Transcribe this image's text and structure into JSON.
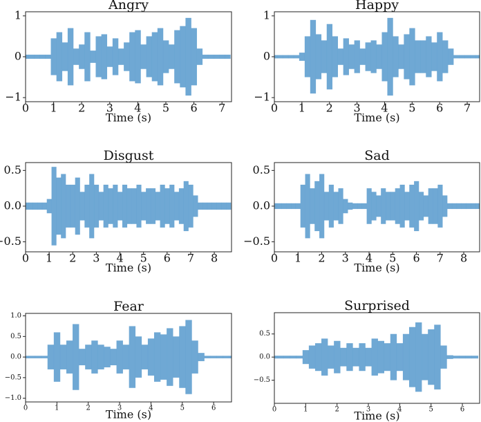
{
  "chart_data": [
    {
      "type": "waveform",
      "title": "Angry",
      "xlabel": "Time (s)",
      "color": "#5f9fcf",
      "x": [
        0,
        0.2,
        0.4,
        0.6,
        0.8,
        1.0,
        1.2,
        1.4,
        1.6,
        1.8,
        2.0,
        2.2,
        2.4,
        2.6,
        2.8,
        3.0,
        3.2,
        3.4,
        3.6,
        3.8,
        4.0,
        4.2,
        4.4,
        4.6,
        4.8,
        5.0,
        5.2,
        5.4,
        5.6,
        5.8,
        6.0,
        6.2,
        6.4,
        6.6,
        6.8,
        7.0,
        7.2
      ],
      "values": [
        0.05,
        0.05,
        0.05,
        0.05,
        0.05,
        0.45,
        0.6,
        0.35,
        0.7,
        0.2,
        0.3,
        0.6,
        0.15,
        0.5,
        0.55,
        0.25,
        0.45,
        0.2,
        0.35,
        0.6,
        0.65,
        0.3,
        0.5,
        0.6,
        0.7,
        0.4,
        0.3,
        0.65,
        0.75,
        0.95,
        0.7,
        0.2,
        0.05,
        0.05,
        0.05,
        0.05,
        0.05
      ],
      "xlim": [
        0,
        7.34
      ],
      "ylim": [
        -1.1,
        1.1
      ],
      "xticks": [
        0,
        1,
        2,
        3,
        4,
        5,
        6,
        7
      ],
      "yticks": [
        {
          "value": -1,
          "label": "−1"
        },
        0,
        1
      ]
    },
    {
      "type": "waveform",
      "title": "Happy",
      "xlabel": "Time (s)",
      "color": "#5f9fcf",
      "x": [
        0,
        0.2,
        0.4,
        0.6,
        0.8,
        1.0,
        1.2,
        1.4,
        1.6,
        1.8,
        2.0,
        2.2,
        2.4,
        2.6,
        2.8,
        3.0,
        3.2,
        3.4,
        3.6,
        3.8,
        4.0,
        4.2,
        4.4,
        4.6,
        4.8,
        5.0,
        5.2,
        5.4,
        5.6,
        5.8,
        6.0,
        6.2,
        6.4,
        6.6,
        6.8,
        7.0,
        7.2,
        7.4
      ],
      "values": [
        0.04,
        0.04,
        0.04,
        0.04,
        0.04,
        0.1,
        0.5,
        0.9,
        0.55,
        0.4,
        0.8,
        0.5,
        0.2,
        0.45,
        0.3,
        0.4,
        0.2,
        0.35,
        0.4,
        0.3,
        0.6,
        0.95,
        0.5,
        0.3,
        0.55,
        0.7,
        0.4,
        0.4,
        0.5,
        0.35,
        0.6,
        0.4,
        0.2,
        0.04,
        0.04,
        0.04,
        0.04,
        0.04
      ],
      "xlim": [
        0,
        7.45
      ],
      "ylim": [
        -1.1,
        1.1
      ],
      "xticks": [
        0,
        1,
        2,
        3,
        4,
        5,
        6,
        7
      ],
      "yticks": [
        {
          "value": -1,
          "label": "−1"
        },
        0,
        1
      ]
    },
    {
      "type": "waveform",
      "title": "Disgust",
      "xlabel": "Time (s)",
      "color": "#5f9fcf",
      "x": [
        0,
        0.2,
        0.4,
        0.6,
        0.8,
        1.0,
        1.2,
        1.4,
        1.6,
        1.8,
        2.0,
        2.2,
        2.4,
        2.6,
        2.8,
        3.0,
        3.2,
        3.4,
        3.6,
        3.8,
        4.0,
        4.2,
        4.4,
        4.6,
        4.8,
        5.0,
        5.2,
        5.4,
        5.6,
        5.8,
        6.0,
        6.2,
        6.4,
        6.6,
        6.8,
        7.0,
        7.2,
        7.4,
        7.6,
        7.8,
        8.0,
        8.2,
        8.4,
        8.6
      ],
      "values": [
        0.05,
        0.05,
        0.05,
        0.05,
        0.05,
        0.1,
        0.55,
        0.4,
        0.45,
        0.3,
        0.3,
        0.4,
        0.2,
        0.3,
        0.45,
        0.3,
        0.2,
        0.3,
        0.25,
        0.3,
        0.2,
        0.3,
        0.25,
        0.25,
        0.3,
        0.2,
        0.25,
        0.25,
        0.2,
        0.3,
        0.25,
        0.3,
        0.2,
        0.25,
        0.35,
        0.3,
        0.15,
        0.05,
        0.05,
        0.05,
        0.05,
        0.05,
        0.05,
        0.05
      ],
      "xlim": [
        0,
        8.73
      ],
      "ylim": [
        -0.64,
        0.61
      ],
      "xticks": [
        0,
        1,
        2,
        3,
        4,
        5,
        6,
        7,
        8
      ],
      "yticks": [
        {
          "value": -0.5,
          "label": "−0.5"
        },
        {
          "value": 0,
          "label": "0.0"
        },
        0.5
      ]
    },
    {
      "type": "waveform",
      "title": "Sad",
      "xlabel": "Time (s)",
      "color": "#5f9fcf",
      "x": [
        0,
        0.2,
        0.4,
        0.6,
        0.8,
        1.0,
        1.2,
        1.4,
        1.6,
        1.8,
        2.0,
        2.2,
        2.4,
        2.6,
        2.8,
        3.0,
        3.2,
        3.4,
        3.6,
        3.8,
        4.0,
        4.2,
        4.4,
        4.6,
        4.8,
        5.0,
        5.2,
        5.4,
        5.6,
        5.8,
        6.0,
        6.2,
        6.4,
        6.6,
        6.8,
        7.0,
        7.2,
        7.4,
        7.6,
        7.8,
        8.0,
        8.2,
        8.4,
        8.6
      ],
      "values": [
        0.04,
        0.04,
        0.04,
        0.04,
        0.04,
        0.04,
        0.3,
        0.45,
        0.25,
        0.35,
        0.45,
        0.2,
        0.3,
        0.2,
        0.25,
        0.1,
        0.05,
        0.04,
        0.04,
        0.04,
        0.25,
        0.2,
        0.15,
        0.25,
        0.2,
        0.2,
        0.25,
        0.3,
        0.2,
        0.3,
        0.35,
        0.2,
        0.15,
        0.25,
        0.25,
        0.3,
        0.15,
        0.04,
        0.04,
        0.04,
        0.04,
        0.04,
        0.04,
        0.04
      ],
      "xlim": [
        0,
        8.67
      ],
      "ylim": [
        -0.64,
        0.61
      ],
      "xticks": [
        0,
        1,
        2,
        3,
        4,
        5,
        6,
        7,
        8
      ],
      "yticks": [
        {
          "value": -0.5,
          "label": "−0.5"
        },
        {
          "value": 0,
          "label": "0.0"
        },
        0.5
      ]
    },
    {
      "type": "waveform",
      "title": "Fear",
      "xlabel": "Time (s)",
      "color": "#5f9fcf",
      "x": [
        0,
        0.2,
        0.4,
        0.6,
        0.8,
        1.0,
        1.2,
        1.4,
        1.6,
        1.8,
        2.0,
        2.2,
        2.4,
        2.6,
        2.8,
        3.0,
        3.2,
        3.4,
        3.6,
        3.8,
        4.0,
        4.2,
        4.4,
        4.6,
        4.8,
        5.0,
        5.2,
        5.4,
        5.6,
        5.8,
        6.0,
        6.2,
        6.4,
        6.6
      ],
      "values": [
        0.03,
        0.03,
        0.03,
        0.03,
        0.3,
        0.6,
        0.3,
        0.4,
        0.8,
        0.2,
        0.3,
        0.4,
        0.3,
        0.25,
        0.2,
        0.4,
        0.3,
        0.75,
        0.5,
        0.3,
        0.45,
        0.6,
        0.55,
        0.7,
        0.5,
        0.75,
        0.9,
        0.4,
        0.1,
        0.03,
        0.03,
        0.03,
        0.03,
        0.03
      ],
      "xlim": [
        0,
        6.57
      ],
      "ylim": [
        -1.09,
        1.06
      ],
      "xticks": [
        0,
        1,
        2,
        3,
        4,
        5,
        6
      ],
      "yticks": [
        {
          "value": -1,
          "label": "−1.0"
        },
        {
          "value": -0.5,
          "label": "−0.5"
        },
        {
          "value": 0,
          "label": "0.0"
        },
        0.5,
        {
          "value": 1,
          "label": "1.0"
        }
      ]
    },
    {
      "type": "waveform",
      "title": "Surprised",
      "xlabel": "Time (s)",
      "color": "#5f9fcf",
      "x": [
        0,
        0.2,
        0.4,
        0.6,
        0.8,
        1.0,
        1.2,
        1.4,
        1.6,
        1.8,
        2.0,
        2.2,
        2.4,
        2.6,
        2.8,
        3.0,
        3.2,
        3.4,
        3.6,
        3.8,
        4.0,
        4.2,
        4.4,
        4.6,
        4.8,
        5.0,
        5.2,
        5.4,
        5.6,
        5.8,
        6.0,
        6.2,
        6.4
      ],
      "values": [
        0.03,
        0.03,
        0.03,
        0.03,
        0.03,
        0.15,
        0.25,
        0.3,
        0.4,
        0.25,
        0.35,
        0.2,
        0.3,
        0.2,
        0.3,
        0.2,
        0.4,
        0.35,
        0.3,
        0.5,
        0.3,
        0.5,
        0.65,
        0.75,
        0.5,
        0.6,
        0.7,
        0.25,
        0.04,
        0.03,
        0.03,
        0.03,
        0.03
      ],
      "xlim": [
        0,
        6.55
      ],
      "ylim": [
        -1.0,
        0.96
      ],
      "xticks": [
        0,
        1,
        2,
        3,
        4,
        5,
        6
      ],
      "yticks": [
        {
          "value": -0.5,
          "label": "−0.5"
        },
        {
          "value": 0,
          "label": "0.0"
        },
        0.5
      ]
    }
  ]
}
